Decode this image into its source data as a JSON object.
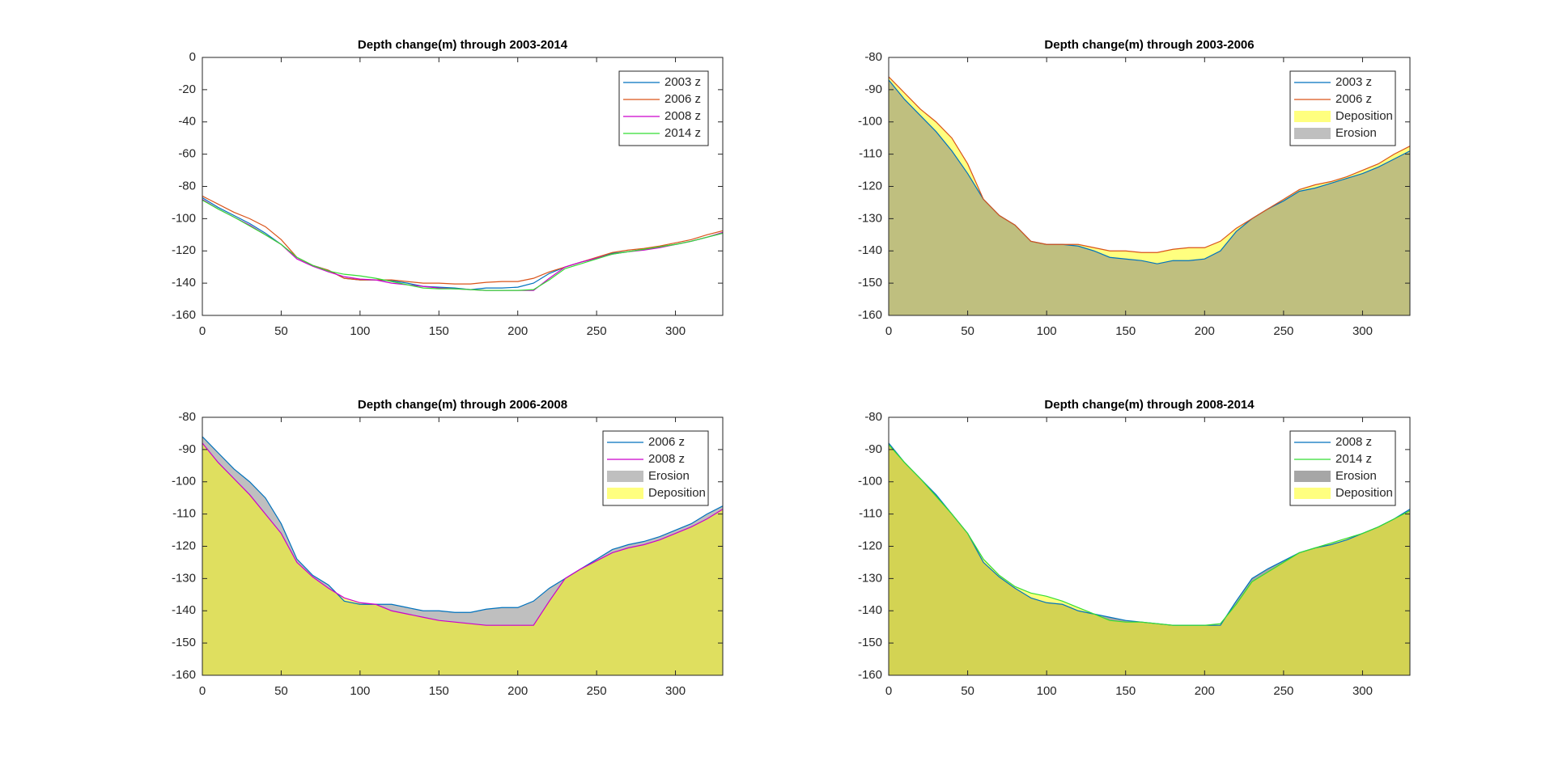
{
  "chart_data": [
    {
      "type": "line",
      "title": "Depth change(m) through 2003-2014",
      "x": [
        0,
        10,
        20,
        30,
        40,
        50,
        60,
        70,
        80,
        90,
        100,
        110,
        120,
        130,
        140,
        150,
        160,
        170,
        180,
        190,
        200,
        210,
        220,
        230,
        240,
        250,
        260,
        270,
        280,
        290,
        300,
        310,
        320,
        330
      ],
      "series": [
        {
          "name": "2003 z",
          "color": "#0072bd",
          "values": [
            -87,
            -93,
            -98,
            -103,
            -109,
            -116,
            -124,
            -129,
            -132,
            -137,
            -138,
            -138,
            -138.5,
            -140,
            -142,
            -142.5,
            -143,
            -144,
            -143,
            -143,
            -142.5,
            -140,
            -134,
            -130,
            -127,
            -124.5,
            -121.5,
            -120.5,
            -119,
            -117.5,
            -116,
            -114,
            -111.5,
            -109
          ]
        },
        {
          "name": "2006 z",
          "color": "#d95319",
          "values": [
            -86,
            -91,
            -96,
            -100,
            -105,
            -113,
            -124,
            -129,
            -132,
            -137,
            -138,
            -138,
            -138,
            -139,
            -140,
            -140,
            -140.5,
            -140.5,
            -139.5,
            -139,
            -139,
            -137,
            -133,
            -130,
            -127,
            -124,
            -121,
            -119.5,
            -118.5,
            -117,
            -115,
            -113,
            -110,
            -107.5
          ]
        },
        {
          "name": "2008 z",
          "color": "#cc00cc",
          "values": [
            -88,
            -94,
            -99,
            -104,
            -110,
            -116,
            -125,
            -129.5,
            -133,
            -136,
            -137.5,
            -138,
            -140,
            -141,
            -142,
            -143,
            -143.5,
            -144,
            -144.5,
            -144.5,
            -144.5,
            -144.5,
            -137,
            -130,
            -127,
            -124.5,
            -122,
            -120.5,
            -119.5,
            -118,
            -116,
            -114,
            -111.5,
            -108.5
          ]
        },
        {
          "name": "2014 z",
          "color": "#33dd33",
          "values": [
            -88.5,
            -94,
            -99,
            -104.5,
            -110,
            -116,
            -124,
            -129,
            -132.5,
            -134.5,
            -135.5,
            -137,
            -139,
            -141,
            -143,
            -143.5,
            -143.5,
            -144,
            -144.5,
            -144.5,
            -144.5,
            -144,
            -138,
            -131,
            -128,
            -125,
            -122,
            -120.5,
            -119,
            -117.5,
            -116,
            -114,
            -111.5,
            -109
          ]
        }
      ],
      "xlim": [
        0,
        330
      ],
      "xticks": [
        0,
        50,
        100,
        150,
        200,
        250,
        300
      ],
      "ylim": [
        -160,
        0
      ],
      "yticks": [
        -160,
        -140,
        -120,
        -100,
        -80,
        -60,
        -40,
        -20,
        0
      ],
      "legend": "northeast",
      "grid": false
    },
    {
      "type": "area",
      "title": "Depth change(m) through 2003-2006",
      "x": [
        0,
        10,
        20,
        30,
        40,
        50,
        60,
        70,
        80,
        90,
        100,
        110,
        120,
        130,
        140,
        150,
        160,
        170,
        180,
        190,
        200,
        210,
        220,
        230,
        240,
        250,
        260,
        270,
        280,
        290,
        300,
        310,
        320,
        330
      ],
      "series": [
        {
          "name": "2003 z",
          "color": "#0072bd",
          "values": [
            -87,
            -93,
            -98,
            -103,
            -109,
            -116,
            -124,
            -129,
            -132,
            -137,
            -138,
            -138,
            -138.5,
            -140,
            -142,
            -142.5,
            -143,
            -144,
            -143,
            -143,
            -142.5,
            -140,
            -134,
            -130,
            -127,
            -124.5,
            -121.5,
            -120.5,
            -119,
            -117.5,
            -116,
            -114,
            -111.5,
            -109
          ]
        },
        {
          "name": "2006 z",
          "color": "#d95319",
          "values": [
            -86,
            -91,
            -96,
            -100,
            -105,
            -113,
            -124,
            -129,
            -132,
            -137,
            -138,
            -138,
            -138,
            -139,
            -140,
            -140,
            -140.5,
            -140.5,
            -139.5,
            -139,
            -139,
            -137,
            -133,
            -130,
            -127,
            -124,
            -121,
            -119.5,
            -118.5,
            -117,
            -115,
            -113,
            -110,
            -107.5
          ]
        }
      ],
      "areas": [
        {
          "name": "Deposition",
          "color": "#ffff00",
          "values": [
            -86,
            -91,
            -96,
            -100,
            -105,
            -113,
            -124,
            -129,
            -132,
            -137,
            -138,
            -138,
            -138,
            -139,
            -140,
            -140,
            -140.5,
            -140.5,
            -139.5,
            -139,
            -139,
            -137,
            -133,
            -130,
            -127,
            -124,
            -121,
            -119.5,
            -118.5,
            -117,
            -115,
            -113,
            -110,
            -107.5
          ]
        },
        {
          "name": "Erosion",
          "color": "#808080",
          "values": [
            -87,
            -93,
            -98,
            -103,
            -109,
            -116,
            -124,
            -129,
            -132,
            -137,
            -138,
            -138,
            -138.5,
            -140,
            -142,
            -142.5,
            -143,
            -144,
            -143,
            -143,
            -142.5,
            -140,
            -134,
            -130,
            -127,
            -124.5,
            -121.5,
            -120.5,
            -119,
            -117.5,
            -116,
            -114,
            -111.5,
            -109
          ]
        }
      ],
      "xlim": [
        0,
        330
      ],
      "xticks": [
        0,
        50,
        100,
        150,
        200,
        250,
        300
      ],
      "ylim": [
        -160,
        -80
      ],
      "yticks": [
        -160,
        -150,
        -140,
        -130,
        -120,
        -110,
        -100,
        -90,
        -80
      ],
      "legend": "northeast",
      "grid": false
    },
    {
      "type": "area",
      "title": "Depth change(m) through 2006-2008",
      "x": [
        0,
        10,
        20,
        30,
        40,
        50,
        60,
        70,
        80,
        90,
        100,
        110,
        120,
        130,
        140,
        150,
        160,
        170,
        180,
        190,
        200,
        210,
        220,
        230,
        240,
        250,
        260,
        270,
        280,
        290,
        300,
        310,
        320,
        330
      ],
      "series": [
        {
          "name": "2006 z",
          "color": "#0072bd",
          "values": [
            -86,
            -91,
            -96,
            -100,
            -105,
            -113,
            -124,
            -129,
            -132,
            -137,
            -138,
            -138,
            -138,
            -139,
            -140,
            -140,
            -140.5,
            -140.5,
            -139.5,
            -139,
            -139,
            -137,
            -133,
            -130,
            -127,
            -124,
            -121,
            -119.5,
            -118.5,
            -117,
            -115,
            -113,
            -110,
            -107.5
          ]
        },
        {
          "name": "2008 z",
          "color": "#cc00cc",
          "values": [
            -88,
            -94,
            -99,
            -104,
            -110,
            -116,
            -125,
            -129.5,
            -133,
            -136,
            -137.5,
            -138,
            -140,
            -141,
            -142,
            -143,
            -143.5,
            -144,
            -144.5,
            -144.5,
            -144.5,
            -144.5,
            -137,
            -130,
            -127,
            -124.5,
            -122,
            -120.5,
            -119.5,
            -118,
            -116,
            -114,
            -111.5,
            -108.5
          ]
        }
      ],
      "areas": [
        {
          "name": "Erosion",
          "color": "#808080",
          "values": [
            -86,
            -91,
            -96,
            -100,
            -105,
            -113,
            -124,
            -129,
            -132,
            -137,
            -138,
            -138,
            -138,
            -139,
            -140,
            -140,
            -140.5,
            -140.5,
            -139.5,
            -139,
            -139,
            -137,
            -133,
            -130,
            -127,
            -124,
            -121,
            -119.5,
            -118.5,
            -117,
            -115,
            -113,
            -110,
            -107.5
          ]
        },
        {
          "name": "Deposition",
          "color": "#ffff00",
          "values": [
            -88,
            -94,
            -99,
            -104,
            -110,
            -116,
            -125,
            -129.5,
            -133,
            -136,
            -137.5,
            -138,
            -140,
            -141,
            -142,
            -143,
            -143.5,
            -144,
            -144.5,
            -144.5,
            -144.5,
            -144.5,
            -137,
            -130,
            -127,
            -124.5,
            -122,
            -120.5,
            -119.5,
            -118,
            -116,
            -114,
            -111.5,
            -108.5
          ]
        }
      ],
      "xlim": [
        0,
        330
      ],
      "xticks": [
        0,
        50,
        100,
        150,
        200,
        250,
        300
      ],
      "ylim": [
        -160,
        -80
      ],
      "yticks": [
        -160,
        -150,
        -140,
        -130,
        -120,
        -110,
        -100,
        -90,
        -80
      ],
      "legend": "northeast",
      "grid": false
    },
    {
      "type": "area",
      "title": "Depth change(m) through 2008-2014",
      "x": [
        0,
        10,
        20,
        30,
        40,
        50,
        60,
        70,
        80,
        90,
        100,
        110,
        120,
        130,
        140,
        150,
        160,
        170,
        180,
        190,
        200,
        210,
        220,
        230,
        240,
        250,
        260,
        270,
        280,
        290,
        300,
        310,
        320,
        330
      ],
      "series": [
        {
          "name": "2008 z",
          "color": "#0072bd",
          "values": [
            -88,
            -94,
            -99,
            -104,
            -110,
            -116,
            -125,
            -129.5,
            -133,
            -136,
            -137.5,
            -138,
            -140,
            -141,
            -142,
            -143,
            -143.5,
            -144,
            -144.5,
            -144.5,
            -144.5,
            -144.5,
            -137,
            -130,
            -127,
            -124.5,
            -122,
            -120.5,
            -119.5,
            -118,
            -116,
            -114,
            -111.5,
            -108.5
          ]
        },
        {
          "name": "2014 z",
          "color": "#33dd33",
          "values": [
            -88.5,
            -94,
            -99,
            -104.5,
            -110,
            -116,
            -124,
            -129,
            -132.5,
            -134.5,
            -135.5,
            -137,
            -139,
            -141,
            -143,
            -143.5,
            -143.5,
            -144,
            -144.5,
            -144.5,
            -144.5,
            -144,
            -138,
            -131,
            -128,
            -125,
            -122,
            -120.5,
            -119,
            -117.5,
            -116,
            -114,
            -111.5,
            -109
          ]
        }
      ],
      "areas": [
        {
          "name": "Erosion",
          "color": "#4d4d4d",
          "values": [
            -88,
            -94,
            -99,
            -104,
            -110,
            -116,
            -125,
            -129.5,
            -133,
            -136,
            -137.5,
            -138,
            -140,
            -141,
            -142,
            -143,
            -143.5,
            -144,
            -144.5,
            -144.5,
            -144.5,
            -144.5,
            -137,
            -130,
            -127,
            -124.5,
            -122,
            -120.5,
            -119.5,
            -118,
            -116,
            -114,
            -111.5,
            -108.5
          ]
        },
        {
          "name": "Deposition",
          "color": "#ffff00",
          "values": [
            -88.5,
            -94,
            -99,
            -104.5,
            -110,
            -116,
            -124,
            -129,
            -132.5,
            -134.5,
            -135.5,
            -137,
            -139,
            -141,
            -143,
            -143.5,
            -143.5,
            -144,
            -144.5,
            -144.5,
            -144.5,
            -144,
            -138,
            -131,
            -128,
            -125,
            -122,
            -120.5,
            -119,
            -117.5,
            -116,
            -114,
            -111.5,
            -109
          ]
        }
      ],
      "xlim": [
        0,
        330
      ],
      "xticks": [
        0,
        50,
        100,
        150,
        200,
        250,
        300
      ],
      "ylim": [
        -160,
        -80
      ],
      "yticks": [
        -160,
        -150,
        -140,
        -130,
        -120,
        -110,
        -100,
        -90,
        -80
      ],
      "legend": "northeast",
      "grid": false
    }
  ]
}
